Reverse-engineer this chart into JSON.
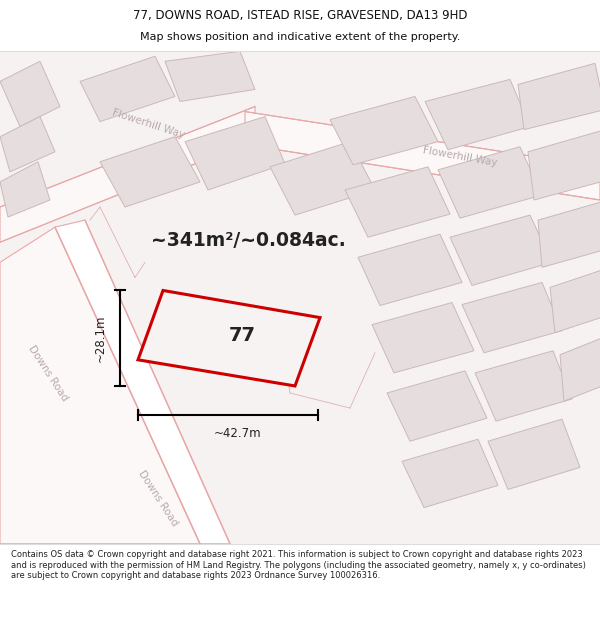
{
  "title_line1": "77, DOWNS ROAD, ISTEAD RISE, GRAVESEND, DA13 9HD",
  "title_line2": "Map shows position and indicative extent of the property.",
  "footer_text": "Contains OS data © Crown copyright and database right 2021. This information is subject to Crown copyright and database rights 2023 and is reproduced with the permission of HM Land Registry. The polygons (including the associated geometry, namely x, y co-ordinates) are subject to Crown copyright and database rights 2023 Ordnance Survey 100026316.",
  "area_label": "~341m²/~0.084ac.",
  "property_number": "77",
  "width_label": "~42.7m",
  "height_label": "~28.1m",
  "map_bg": "#f7f2f2",
  "road_fill": "#fdf8f8",
  "road_edge": "#e8a8a8",
  "block_fill": "#e6dede",
  "block_edge": "#ccb8b8",
  "highlight_color": "#cc0000",
  "road_label_color": "#b8aaaa",
  "text_color": "#222222",
  "title_fontsize": 8.5,
  "subtitle_fontsize": 8.0,
  "footer_fontsize": 6.0
}
